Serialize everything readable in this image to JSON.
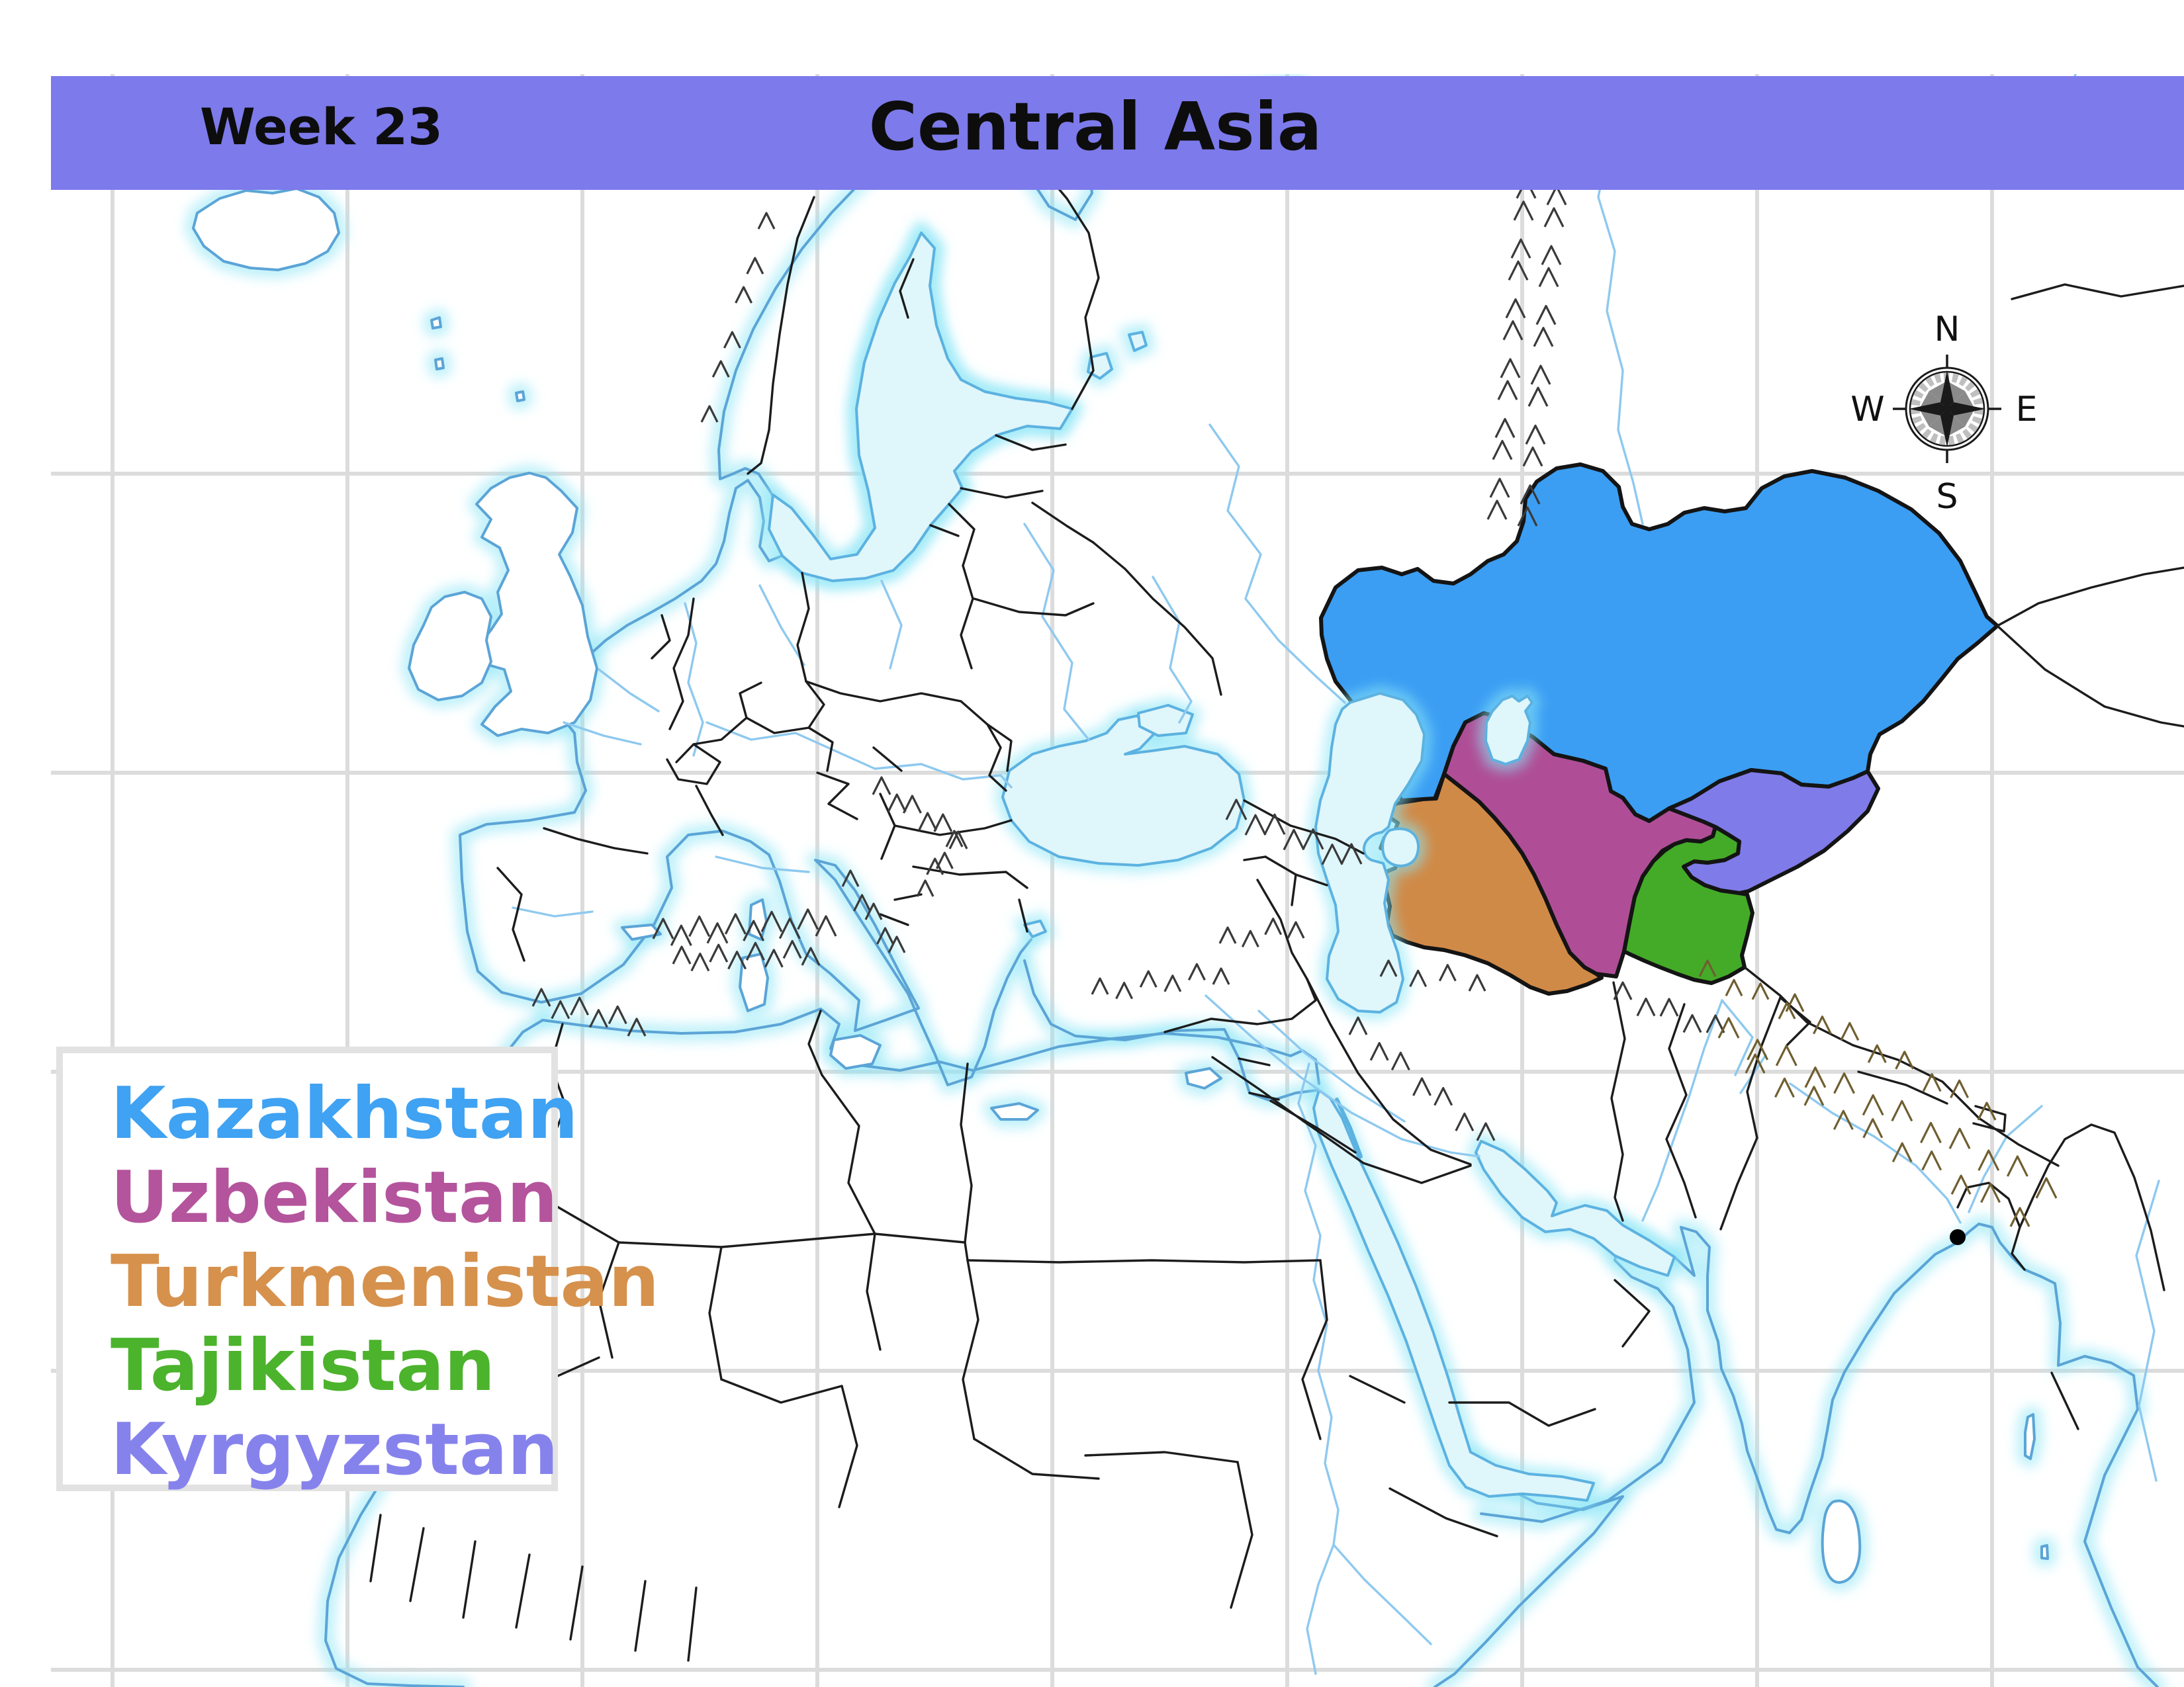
{
  "header": {
    "week_label": "Week 23",
    "title": "Central Asia",
    "bar_color": "#7d7aeb"
  },
  "legend": {
    "items": [
      {
        "id": "kazakhstan",
        "label": "Kazakhstan",
        "color": "#3fa2f2"
      },
      {
        "id": "uzbekistan",
        "label": "Uzbekistan",
        "color": "#b4549c"
      },
      {
        "id": "turkmenistan",
        "label": "Turkmenistan",
        "color": "#d6914c"
      },
      {
        "id": "tajikistan",
        "label": "Tajikistan",
        "color": "#4cb32c"
      },
      {
        "id": "kyrgyzstan",
        "label": "Kyrgyzstan",
        "color": "#8682ec"
      }
    ]
  },
  "compass": {
    "north": "N",
    "east": "E",
    "south": "S",
    "west": "W"
  },
  "map": {
    "colors": {
      "kazakhstan": "#3b9ef3",
      "uzbekistan": "#af4e96",
      "turkmenistan": "#d08a47",
      "tajikistan": "#44ab28",
      "kyrgyzstan": "#7f7be8",
      "sea_fill": "#dff6fb",
      "sea_edge": "#5cb2e0",
      "coast": "#5ba4d6",
      "coast_glow": "#8ae6f6",
      "border": "#1c1c1c",
      "graticule": "#dcdcdc",
      "river": "#8ec9ef",
      "mountain": "#3a3a3a",
      "mountain_high": "#6f5f30",
      "city_dot": "#000000"
    },
    "markers": [
      {
        "type": "city-dot"
      }
    ]
  }
}
